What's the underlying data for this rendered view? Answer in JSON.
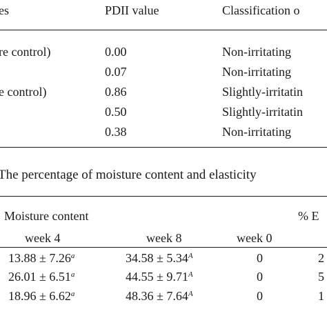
{
  "table1": {
    "headers": [
      "es",
      "PDII value",
      "Classification o"
    ],
    "rows": [
      {
        "sample": "re control)",
        "pdii": "0.00",
        "classification": "Non-irritating"
      },
      {
        "sample": "",
        "pdii": "0.07",
        "classification": "Non-irritating"
      },
      {
        "sample": "e control)",
        "pdii": "0.86",
        "classification": "Slightly-irritatin"
      },
      {
        "sample": "",
        "pdii": "0.50",
        "classification": "Slightly-irritatin"
      },
      {
        "sample": "",
        "pdii": "0.38",
        "classification": "Non-irritating"
      }
    ]
  },
  "table2": {
    "caption": "The percentage of moisture content and elasticity",
    "group_header_moisture": "Moisture content",
    "group_header_elasticity": "% E",
    "subheaders": [
      "week 4",
      "week 8",
      "week 0"
    ],
    "rows": [
      {
        "w4": "13.88 ± 7.26",
        "w4_sup": "a",
        "w8": "34.58 ± 5.34",
        "w8_sup": "A",
        "w0": "0",
        "last": "2"
      },
      {
        "w4": "26.01 ± 6.51",
        "w4_sup": "a",
        "w8": "44.55 ± 9.71",
        "w8_sup": "A",
        "w0": "0",
        "last": "5"
      },
      {
        "w4": "18.96 ± 6.62",
        "w4_sup": "a",
        "w8": "48.36 ± 7.64",
        "w8_sup": "A",
        "w0": "0",
        "last": "1"
      }
    ]
  }
}
